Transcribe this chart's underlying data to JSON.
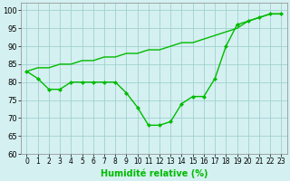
{
  "x": [
    0,
    1,
    2,
    3,
    4,
    5,
    6,
    7,
    8,
    9,
    10,
    11,
    12,
    13,
    14,
    15,
    16,
    17,
    18,
    19,
    20,
    21,
    22,
    23
  ],
  "line_valley": [
    83,
    81,
    78,
    78,
    80,
    80,
    80,
    80,
    80,
    77,
    73,
    68,
    68,
    69,
    74,
    76,
    76,
    81,
    90,
    96,
    97,
    98,
    99,
    99
  ],
  "line_steady": [
    83,
    84,
    84,
    85,
    85,
    86,
    86,
    87,
    87,
    88,
    88,
    89,
    89,
    90,
    91,
    91,
    92,
    93,
    94,
    95,
    97,
    98,
    99,
    99
  ],
  "color": "#00bb00",
  "bg_color": "#d4f0f0",
  "grid_color": "#99cccc",
  "xlabel": "Humidité relative (%)",
  "ylim": [
    60,
    102
  ],
  "xlim": [
    -0.5,
    23.5
  ],
  "yticks": [
    60,
    65,
    70,
    75,
    80,
    85,
    90,
    95,
    100
  ],
  "xticks": [
    0,
    1,
    2,
    3,
    4,
    5,
    6,
    7,
    8,
    9,
    10,
    11,
    12,
    13,
    14,
    15,
    16,
    17,
    18,
    19,
    20,
    21,
    22,
    23
  ]
}
